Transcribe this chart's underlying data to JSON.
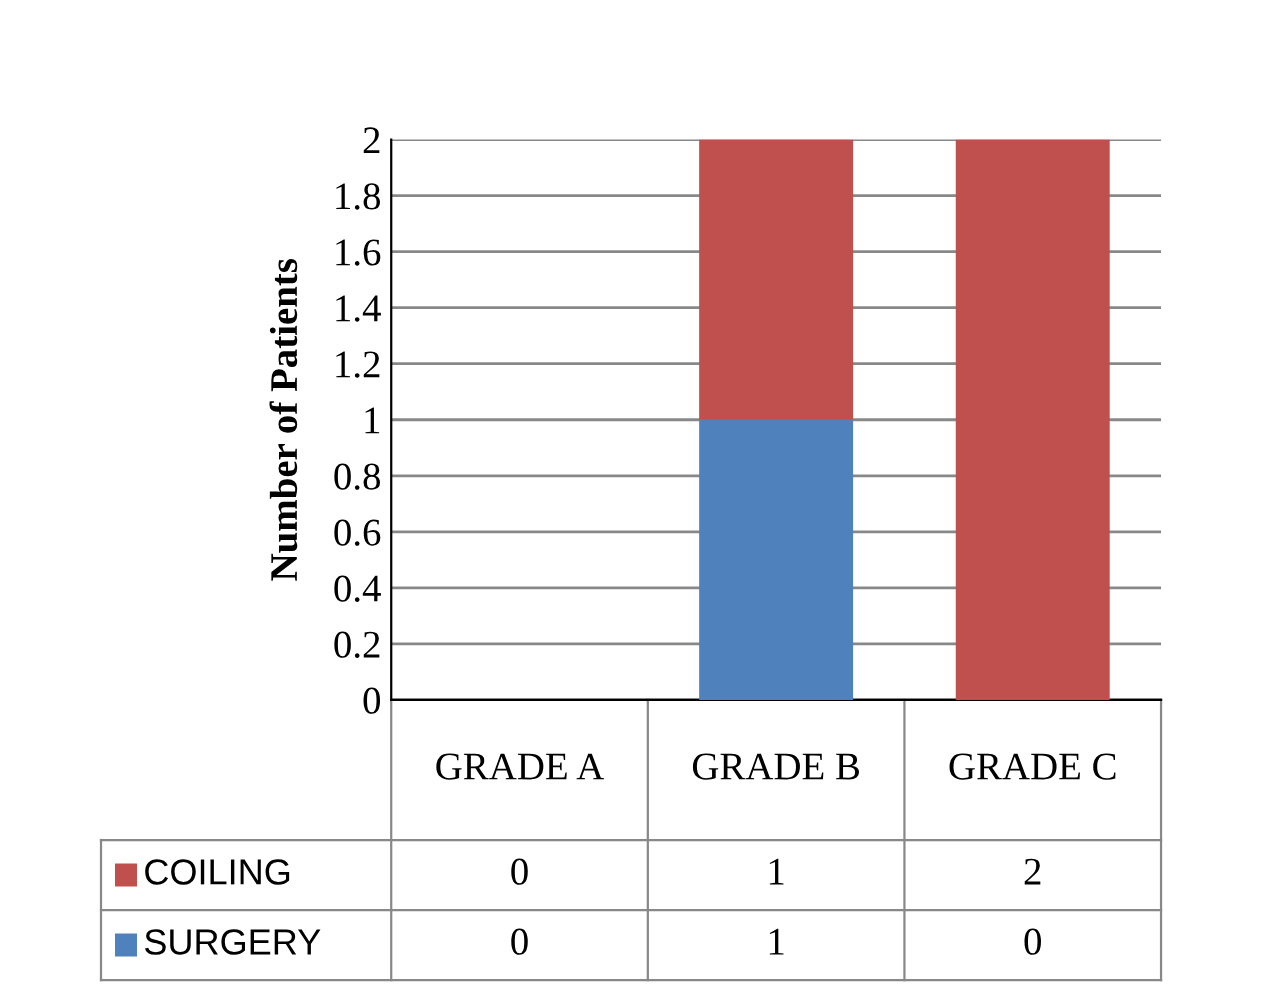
{
  "chart_data": {
    "type": "bar",
    "stacked": true,
    "ylabel": "Number of Patients",
    "categories": [
      "GRADE A",
      "GRADE B",
      "GRADE C"
    ],
    "series": [
      {
        "name": "SURGERY",
        "color": "#4f81bd",
        "values": [
          0,
          1,
          0
        ]
      },
      {
        "name": "COILING",
        "color": "#c0504d",
        "values": [
          0,
          1,
          2
        ]
      }
    ],
    "ylim": [
      0,
      2
    ],
    "yticks": [
      0,
      0.2,
      0.4,
      0.6,
      0.8,
      1,
      1.2,
      1.4,
      1.6,
      1.8,
      2
    ],
    "grid": "y",
    "data_labels": true,
    "legend": "bottom"
  }
}
